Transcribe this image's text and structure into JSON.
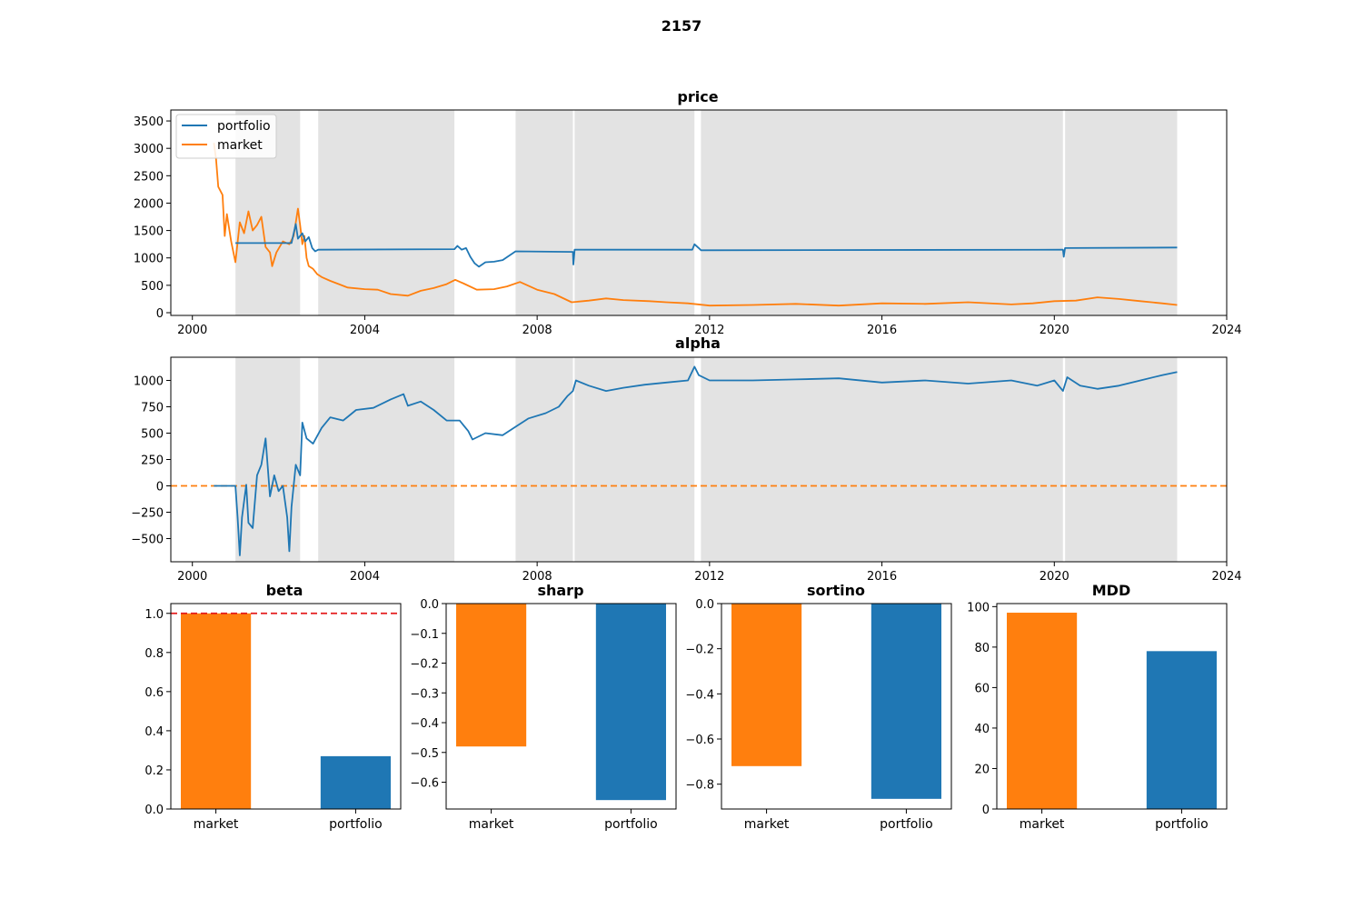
{
  "figure": {
    "title": "2157"
  },
  "colors": {
    "portfolio": "#1f77b4",
    "market": "#ff7f0e",
    "shade": "#cccccc",
    "beta_ref": "#e41a1c"
  },
  "chart_data": [
    {
      "id": "price",
      "type": "line",
      "title": "price",
      "xlabel": "",
      "ylabel": "",
      "xlim": [
        1999.5,
        2024.0
      ],
      "ylim": [
        -50,
        3700
      ],
      "x_ticks": [
        2000,
        2004,
        2008,
        2012,
        2016,
        2020,
        2024
      ],
      "y_ticks": [
        0,
        500,
        1000,
        1500,
        2000,
        2500,
        3000,
        3500
      ],
      "legend": {
        "position": "top-left",
        "entries": [
          "portfolio",
          "market"
        ]
      },
      "shaded_periods": [
        [
          2001.0,
          2002.5
        ],
        [
          2002.92,
          2006.08
        ],
        [
          2007.5,
          2008.83
        ],
        [
          2008.87,
          2011.65
        ],
        [
          2011.8,
          2020.2
        ],
        [
          2020.25,
          2022.85
        ]
      ],
      "series": [
        {
          "name": "portfolio",
          "points": [
            [
              2001.0,
              1270
            ],
            [
              2002.3,
              1270
            ],
            [
              2002.4,
              1620
            ],
            [
              2002.45,
              1350
            ],
            [
              2002.55,
              1450
            ],
            [
              2002.62,
              1300
            ],
            [
              2002.7,
              1380
            ],
            [
              2002.78,
              1180
            ],
            [
              2002.85,
              1120
            ],
            [
              2002.92,
              1150
            ],
            [
              2006.08,
              1160
            ],
            [
              2006.15,
              1220
            ],
            [
              2006.25,
              1150
            ],
            [
              2006.35,
              1180
            ],
            [
              2006.45,
              1020
            ],
            [
              2006.55,
              900
            ],
            [
              2006.65,
              840
            ],
            [
              2006.8,
              920
            ],
            [
              2007.0,
              930
            ],
            [
              2007.2,
              960
            ],
            [
              2007.5,
              1120
            ],
            [
              2008.83,
              1110
            ],
            [
              2008.84,
              880
            ],
            [
              2008.87,
              1150
            ],
            [
              2011.6,
              1150
            ],
            [
              2011.65,
              1250
            ],
            [
              2011.75,
              1180
            ],
            [
              2011.8,
              1140
            ],
            [
              2020.2,
              1150
            ],
            [
              2020.22,
              1020
            ],
            [
              2020.25,
              1180
            ],
            [
              2022.85,
              1190
            ]
          ]
        },
        {
          "name": "market",
          "points": [
            [
              2000.5,
              3100
            ],
            [
              2000.55,
              2800
            ],
            [
              2000.6,
              2300
            ],
            [
              2000.7,
              2150
            ],
            [
              2000.75,
              1400
            ],
            [
              2000.8,
              1800
            ],
            [
              2000.9,
              1300
            ],
            [
              2001.0,
              920
            ],
            [
              2001.1,
              1650
            ],
            [
              2001.2,
              1450
            ],
            [
              2001.3,
              1850
            ],
            [
              2001.4,
              1500
            ],
            [
              2001.5,
              1600
            ],
            [
              2001.6,
              1750
            ],
            [
              2001.7,
              1200
            ],
            [
              2001.8,
              1100
            ],
            [
              2001.85,
              850
            ],
            [
              2001.95,
              1100
            ],
            [
              2002.1,
              1300
            ],
            [
              2002.25,
              1250
            ],
            [
              2002.35,
              1400
            ],
            [
              2002.45,
              1900
            ],
            [
              2002.5,
              1600
            ],
            [
              2002.55,
              1250
            ],
            [
              2002.6,
              1400
            ],
            [
              2002.65,
              1000
            ],
            [
              2002.7,
              850
            ],
            [
              2002.8,
              800
            ],
            [
              2002.9,
              700
            ],
            [
              2003.0,
              650
            ],
            [
              2003.2,
              580
            ],
            [
              2003.4,
              520
            ],
            [
              2003.6,
              460
            ],
            [
              2004.0,
              430
            ],
            [
              2004.3,
              420
            ],
            [
              2004.6,
              340
            ],
            [
              2005.0,
              310
            ],
            [
              2005.3,
              400
            ],
            [
              2005.6,
              450
            ],
            [
              2005.9,
              520
            ],
            [
              2006.1,
              600
            ],
            [
              2006.3,
              530
            ],
            [
              2006.6,
              420
            ],
            [
              2007.0,
              430
            ],
            [
              2007.3,
              480
            ],
            [
              2007.6,
              560
            ],
            [
              2008.0,
              420
            ],
            [
              2008.4,
              340
            ],
            [
              2008.8,
              190
            ],
            [
              2009.2,
              220
            ],
            [
              2009.6,
              260
            ],
            [
              2010.0,
              230
            ],
            [
              2010.6,
              210
            ],
            [
              2011.0,
              190
            ],
            [
              2011.5,
              170
            ],
            [
              2012.0,
              130
            ],
            [
              2013.0,
              140
            ],
            [
              2014.0,
              160
            ],
            [
              2015.0,
              130
            ],
            [
              2016.0,
              170
            ],
            [
              2017.0,
              160
            ],
            [
              2018.0,
              190
            ],
            [
              2019.0,
              150
            ],
            [
              2019.5,
              170
            ],
            [
              2020.0,
              210
            ],
            [
              2020.5,
              220
            ],
            [
              2021.0,
              280
            ],
            [
              2021.5,
              250
            ],
            [
              2022.0,
              210
            ],
            [
              2022.5,
              170
            ],
            [
              2022.85,
              140
            ]
          ]
        }
      ]
    },
    {
      "id": "alpha",
      "type": "line",
      "title": "alpha",
      "xlabel": "",
      "ylabel": "",
      "xlim": [
        1999.5,
        2024.0
      ],
      "ylim": [
        -720,
        1220
      ],
      "x_ticks": [
        2000,
        2004,
        2008,
        2012,
        2016,
        2020,
        2024
      ],
      "y_ticks": [
        -500,
        -250,
        0,
        250,
        500,
        750,
        1000
      ],
      "y_tick_labels": [
        "−500",
        "−250",
        "0",
        "250",
        "500",
        "750",
        "1000"
      ],
      "reference_line": {
        "y": 0,
        "style": "dashed",
        "color": "#ff7f0e"
      },
      "shaded_periods": [
        [
          2001.0,
          2002.5
        ],
        [
          2002.92,
          2006.08
        ],
        [
          2007.5,
          2008.83
        ],
        [
          2008.87,
          2011.65
        ],
        [
          2011.8,
          2020.2
        ],
        [
          2020.25,
          2022.85
        ]
      ],
      "series": [
        {
          "name": "portfolio",
          "points": [
            [
              2000.5,
              0
            ],
            [
              2001.0,
              0
            ],
            [
              2001.05,
              -300
            ],
            [
              2001.1,
              -660
            ],
            [
              2001.15,
              -300
            ],
            [
              2001.25,
              10
            ],
            [
              2001.3,
              -350
            ],
            [
              2001.4,
              -400
            ],
            [
              2001.5,
              100
            ],
            [
              2001.6,
              200
            ],
            [
              2001.7,
              450
            ],
            [
              2001.8,
              -100
            ],
            [
              2001.9,
              100
            ],
            [
              2002.0,
              -50
            ],
            [
              2002.1,
              0
            ],
            [
              2002.2,
              -300
            ],
            [
              2002.25,
              -620
            ],
            [
              2002.3,
              -200
            ],
            [
              2002.4,
              200
            ],
            [
              2002.5,
              100
            ],
            [
              2002.55,
              600
            ],
            [
              2002.65,
              450
            ],
            [
              2002.8,
              400
            ],
            [
              2003.0,
              550
            ],
            [
              2003.2,
              650
            ],
            [
              2003.5,
              620
            ],
            [
              2003.8,
              720
            ],
            [
              2004.2,
              740
            ],
            [
              2004.6,
              820
            ],
            [
              2004.9,
              870
            ],
            [
              2005.0,
              760
            ],
            [
              2005.3,
              800
            ],
            [
              2005.6,
              720
            ],
            [
              2005.9,
              620
            ],
            [
              2006.2,
              620
            ],
            [
              2006.4,
              520
            ],
            [
              2006.5,
              440
            ],
            [
              2006.8,
              500
            ],
            [
              2007.2,
              480
            ],
            [
              2007.5,
              560
            ],
            [
              2007.8,
              640
            ],
            [
              2008.2,
              690
            ],
            [
              2008.5,
              750
            ],
            [
              2008.7,
              850
            ],
            [
              2008.83,
              900
            ],
            [
              2008.9,
              1000
            ],
            [
              2009.2,
              950
            ],
            [
              2009.6,
              900
            ],
            [
              2010.0,
              930
            ],
            [
              2010.5,
              960
            ],
            [
              2011.0,
              980
            ],
            [
              2011.5,
              1000
            ],
            [
              2011.65,
              1130
            ],
            [
              2011.75,
              1050
            ],
            [
              2012.0,
              1000
            ],
            [
              2013.0,
              1000
            ],
            [
              2014.0,
              1010
            ],
            [
              2015.0,
              1020
            ],
            [
              2016.0,
              980
            ],
            [
              2017.0,
              1000
            ],
            [
              2018.0,
              970
            ],
            [
              2019.0,
              1000
            ],
            [
              2019.6,
              950
            ],
            [
              2020.0,
              1000
            ],
            [
              2020.2,
              900
            ],
            [
              2020.3,
              1030
            ],
            [
              2020.6,
              950
            ],
            [
              2021.0,
              920
            ],
            [
              2021.5,
              950
            ],
            [
              2022.0,
              1000
            ],
            [
              2022.5,
              1050
            ],
            [
              2022.85,
              1080
            ]
          ]
        }
      ]
    },
    {
      "id": "beta",
      "type": "bar",
      "title": "beta",
      "categories": [
        "market",
        "portfolio"
      ],
      "values": [
        1.0,
        0.27
      ],
      "bar_colors": [
        "#ff7f0e",
        "#1f77b4"
      ],
      "ylim": [
        0,
        1.05
      ],
      "y_ticks": [
        0.0,
        0.2,
        0.4,
        0.6,
        0.8,
        1.0
      ],
      "y_tick_labels": [
        "0.0",
        "0.2",
        "0.4",
        "0.6",
        "0.8",
        "1.0"
      ],
      "reference_line": {
        "y": 1.0,
        "style": "dashed",
        "color": "#e41a1c"
      }
    },
    {
      "id": "sharp",
      "type": "bar",
      "title": "sharp",
      "categories": [
        "market",
        "portfolio"
      ],
      "values": [
        -0.48,
        -0.66
      ],
      "bar_colors": [
        "#ff7f0e",
        "#1f77b4"
      ],
      "ylim": [
        -0.69,
        0
      ],
      "y_ticks": [
        -0.6,
        -0.5,
        -0.4,
        -0.3,
        -0.2,
        -0.1,
        0.0
      ],
      "y_tick_labels": [
        "−0.6",
        "−0.5",
        "−0.4",
        "−0.3",
        "−0.2",
        "−0.1",
        "0.0"
      ]
    },
    {
      "id": "sortino",
      "type": "bar",
      "title": "sortino",
      "categories": [
        "market",
        "portfolio"
      ],
      "values": [
        -0.72,
        -0.865
      ],
      "bar_colors": [
        "#ff7f0e",
        "#1f77b4"
      ],
      "ylim": [
        -0.91,
        0
      ],
      "y_ticks": [
        -0.8,
        -0.6,
        -0.4,
        -0.2,
        0.0
      ],
      "y_tick_labels": [
        "−0.8",
        "−0.6",
        "−0.4",
        "−0.2",
        "0.0"
      ]
    },
    {
      "id": "MDD",
      "type": "bar",
      "title": "MDD",
      "categories": [
        "market",
        "portfolio"
      ],
      "values": [
        97,
        78
      ],
      "bar_colors": [
        "#ff7f0e",
        "#1f77b4"
      ],
      "ylim": [
        0,
        101.5
      ],
      "y_ticks": [
        0,
        20,
        40,
        60,
        80,
        100
      ],
      "y_tick_labels": [
        "0",
        "20",
        "40",
        "60",
        "80",
        "100"
      ]
    }
  ]
}
